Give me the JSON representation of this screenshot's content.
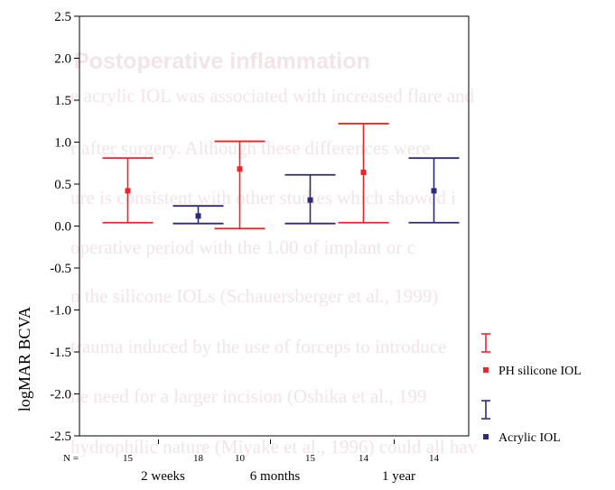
{
  "background_text": {
    "heading": "Postoperative inflammation",
    "lines": [
      "e acrylic IOL was associated with increased flare and",
      "r after surgery. Although these differences were",
      "ure is consistent with other studies which showed i",
      "operative period with the 1.00 of implant or c",
      "n the silicone IOLs (Schauersberger et al., 1999)",
      "trauma induced by the use of forceps to introduce",
      "ne need for a larger incision (Oshika et al., 199",
      "hydrophilic nature (Miyake et al., 1996) could all hav"
    ]
  },
  "chart_data": {
    "type": "errorbar",
    "ylabel": "logMAR BCVA",
    "ylim": [
      -2.5,
      2.5
    ],
    "yticks": [
      "2.5",
      "2.0",
      "1.5",
      "1.0",
      "0.5",
      "0.0",
      "-0.5",
      "-1.0",
      "-1.5",
      "-2.0",
      "-2.5"
    ],
    "groups": [
      {
        "label": "2 weeks",
        "n_labels": [
          "15",
          "18"
        ]
      },
      {
        "label": "6 months",
        "n_labels": [
          "10",
          "15"
        ]
      },
      {
        "label": "1 year",
        "n_labels": [
          "14",
          "14"
        ]
      }
    ],
    "n_prefix": "N =",
    "series": [
      {
        "name": "PH silicone IOL",
        "color": "#e8272b",
        "bars": [
          {
            "mean": 0.42,
            "low": 0.04,
            "high": 0.81
          },
          {
            "mean": 0.68,
            "low": -0.03,
            "high": 1.01
          },
          {
            "mean": 0.64,
            "low": 0.04,
            "high": 1.22
          }
        ]
      },
      {
        "name": "Acrylic IOL",
        "color": "#2e2a7a",
        "bars": [
          {
            "mean": 0.12,
            "low": 0.03,
            "high": 0.24
          },
          {
            "mean": 0.31,
            "low": 0.03,
            "high": 0.61
          },
          {
            "mean": 0.42,
            "low": 0.04,
            "high": 0.81
          }
        ]
      }
    ],
    "legend_position": "right"
  }
}
